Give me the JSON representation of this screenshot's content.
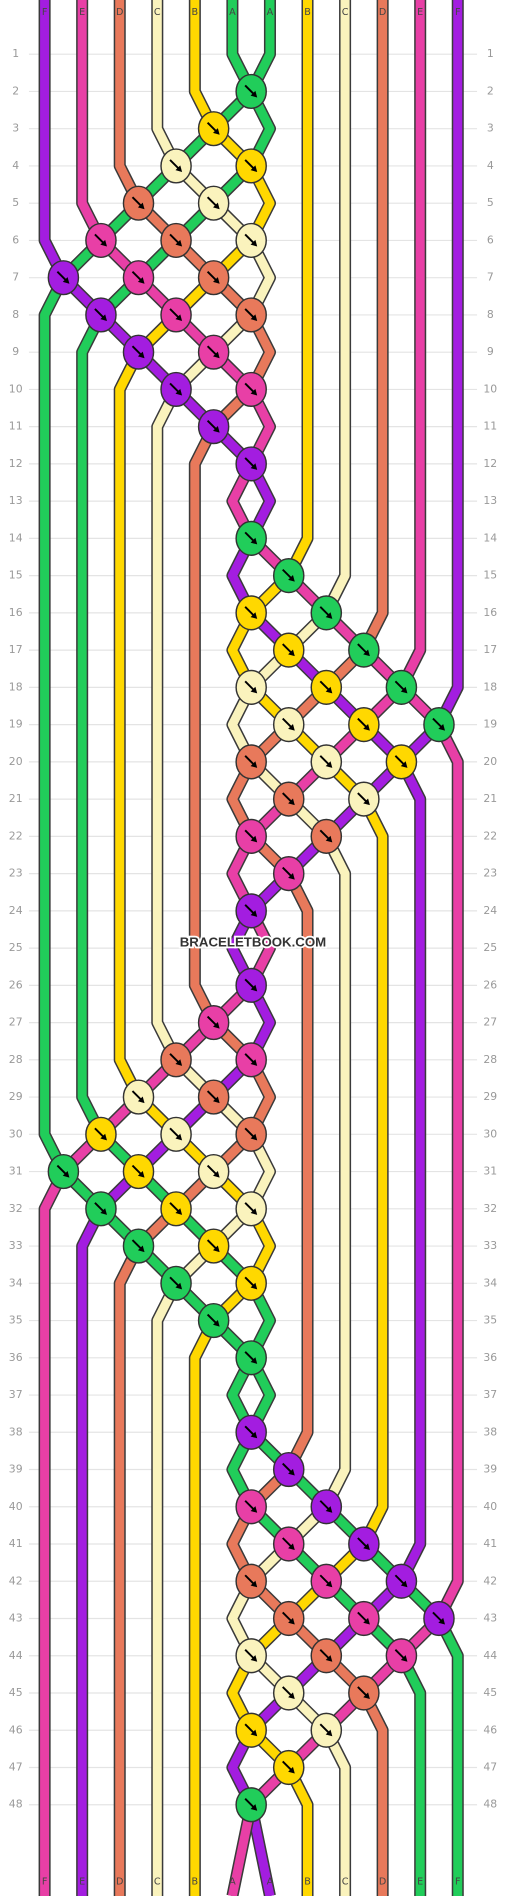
{
  "columns_top": [
    "F",
    "E",
    "D",
    "C",
    "B",
    "A",
    "A",
    "B",
    "C",
    "D",
    "E",
    "F"
  ],
  "columns_bottom": [
    "F",
    "E",
    "D",
    "C",
    "B",
    "A",
    "A",
    "B",
    "C",
    "D",
    "E",
    "F"
  ],
  "rows": [
    1,
    2,
    3,
    4,
    5,
    6,
    7,
    8,
    9,
    10,
    11,
    12,
    13,
    14,
    15,
    16,
    17,
    18,
    19,
    20,
    21,
    22,
    23,
    24,
    25,
    26,
    27,
    28,
    29,
    30,
    31,
    32,
    33,
    34,
    35,
    36,
    37,
    38,
    39,
    40,
    41,
    42,
    43,
    44,
    45,
    46,
    47,
    48
  ],
  "watermark": "BRACELETBOOK.COM"
}
